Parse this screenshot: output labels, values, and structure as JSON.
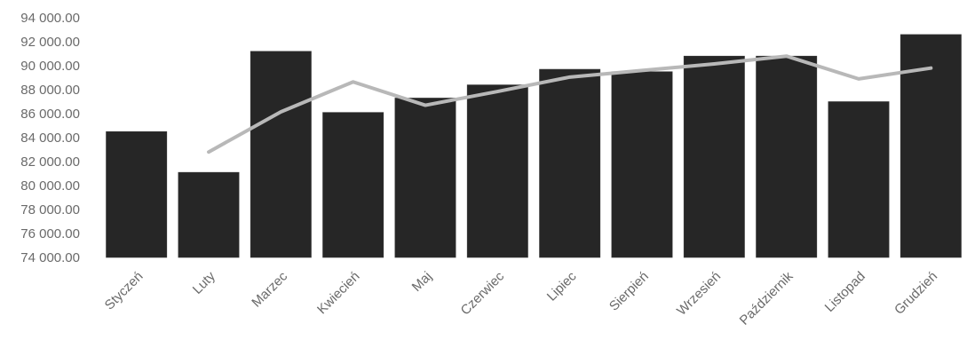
{
  "chart_data": {
    "type": "bar",
    "title": "",
    "xlabel": "",
    "ylabel": "",
    "ylim": [
      74000,
      94000
    ],
    "y_ticks": [
      74000,
      76000,
      78000,
      80000,
      82000,
      84000,
      86000,
      88000,
      90000,
      92000,
      94000
    ],
    "y_tick_labels": [
      "74 000.00",
      "76 000.00",
      "78 000.00",
      "80 000.00",
      "82 000.00",
      "84 000.00",
      "86 000.00",
      "88 000.00",
      "90 000.00",
      "92 000.00",
      "94 000.00"
    ],
    "grid": false,
    "legend": "none",
    "categories": [
      "Styczeń",
      "Luty",
      "Marzec",
      "Kwiecień",
      "Maj",
      "Czerwiec",
      "Lipiec",
      "Sierpień",
      "Wrzesień",
      "Październik",
      "Listopad",
      "Grudzień"
    ],
    "series": [
      {
        "type": "bar",
        "color": "#262626",
        "values": [
          84500,
          81100,
          91200,
          86100,
          87300,
          88400,
          89700,
          89500,
          90800,
          90800,
          87000,
          92600
        ]
      },
      {
        "type": "line",
        "color": "#b8b8b8",
        "values": [
          null,
          82800,
          86150,
          88650,
          86700,
          87850,
          89050,
          89600,
          90150,
          90800,
          88900,
          89800
        ]
      }
    ]
  }
}
